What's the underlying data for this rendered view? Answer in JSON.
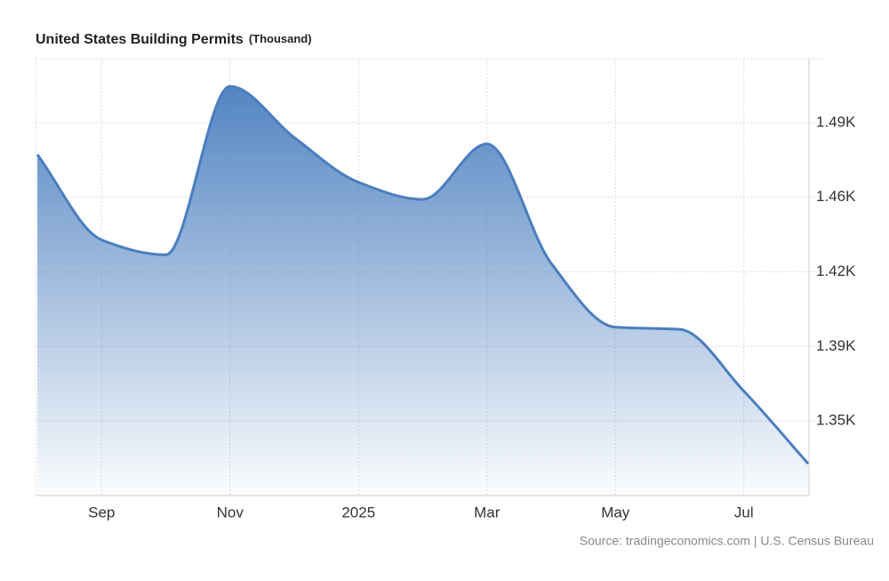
{
  "chart_data": {
    "type": "area",
    "title": "United States Building Permits",
    "unit": "(Thousand)",
    "source": "Source: tradingeconomics.com | U.S. Census Bureau",
    "categories": [
      null,
      "Sep",
      null,
      "Nov",
      null,
      "2025",
      null,
      "Mar",
      null,
      "May",
      null,
      "Jul",
      null
    ],
    "values": [
      1475,
      1435,
      1428,
      1507,
      1483,
      1462,
      1454,
      1480,
      1424,
      1394,
      1393,
      1364,
      1330
    ],
    "color": "#4a7ebf",
    "ylim": [
      1315,
      1520
    ],
    "yticks": [
      {
        "value": 1350,
        "label": "1.35K"
      },
      {
        "value": 1385,
        "label": "1.39K"
      },
      {
        "value": 1420,
        "label": "1.42K"
      },
      {
        "value": 1455,
        "label": "1.46K"
      },
      {
        "value": 1490,
        "label": "1.49K"
      }
    ],
    "grid": true
  }
}
